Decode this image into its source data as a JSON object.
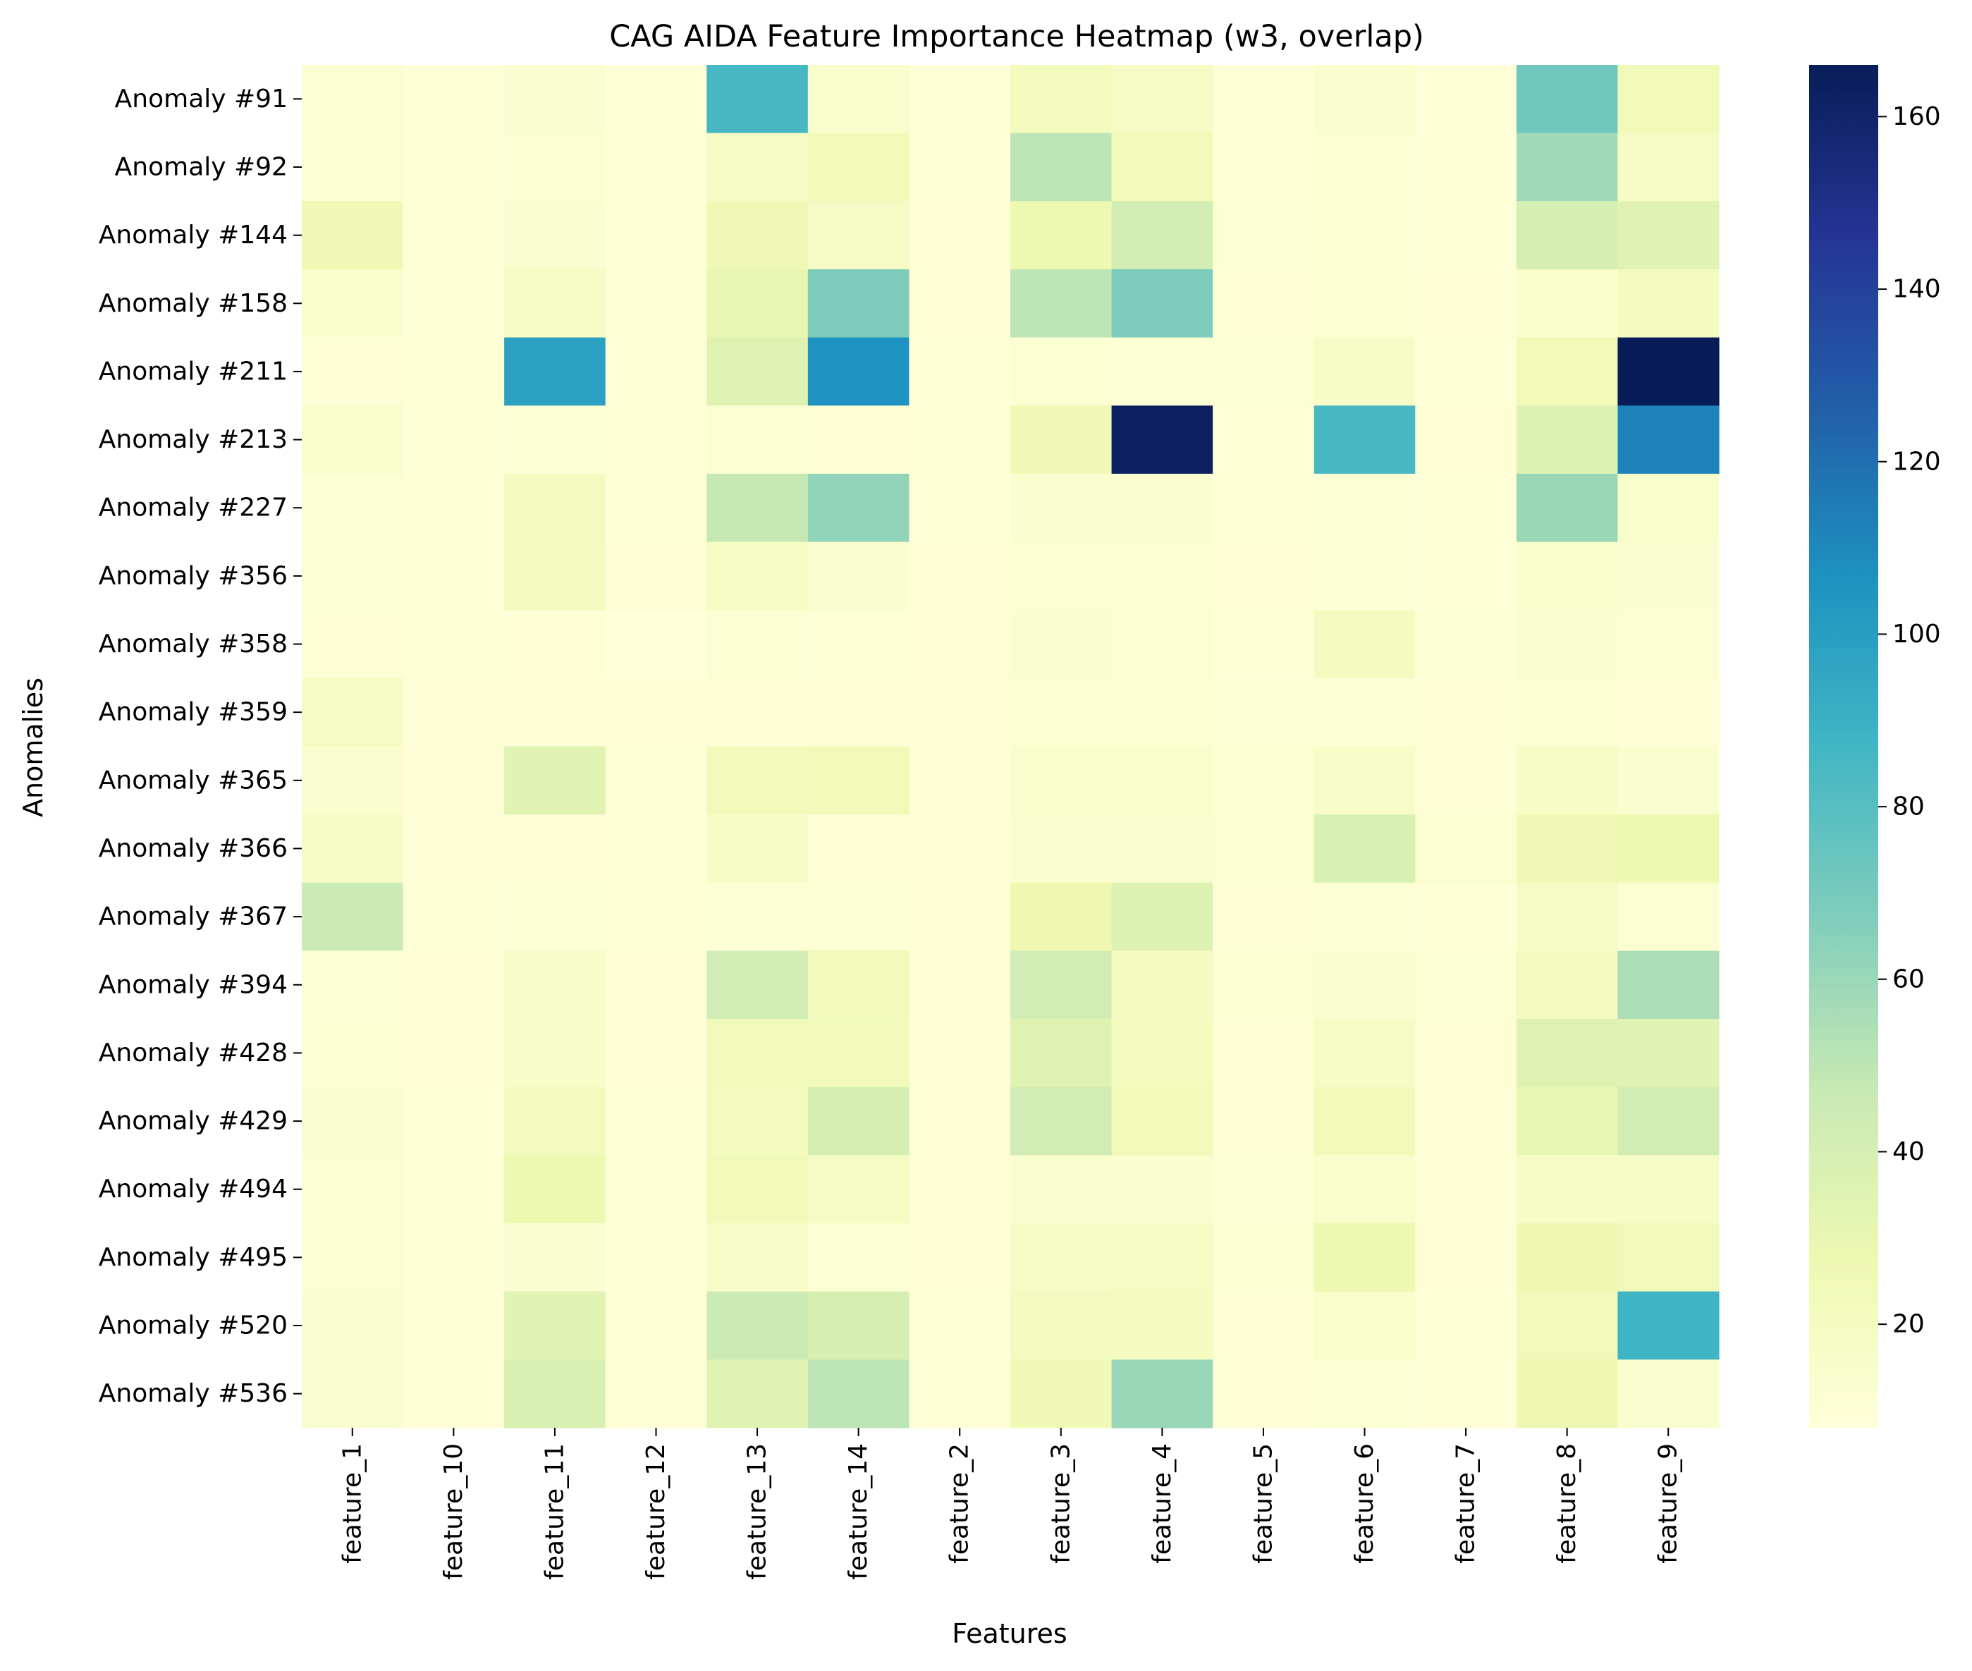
{
  "chart_data": {
    "type": "heatmap",
    "title": "CAG AIDA Feature Importance Heatmap (w3, overlap)",
    "xlabel": "Features",
    "ylabel": "Anomalies",
    "columns": [
      "feature_1",
      "feature_10",
      "feature_11",
      "feature_12",
      "feature_13",
      "feature_14",
      "feature_2",
      "feature_3",
      "feature_4",
      "feature_5",
      "feature_6",
      "feature_7",
      "feature_8",
      "feature_9"
    ],
    "rows": [
      "Anomaly #91",
      "Anomaly #92",
      "Anomaly #144",
      "Anomaly #158",
      "Anomaly #211",
      "Anomaly #213",
      "Anomaly #227",
      "Anomaly #356",
      "Anomaly #358",
      "Anomaly #359",
      "Anomaly #365",
      "Anomaly #366",
      "Anomaly #367",
      "Anomaly #394",
      "Anomaly #428",
      "Anomaly #429",
      "Anomaly #494",
      "Anomaly #495",
      "Anomaly #520",
      "Anomaly #536"
    ],
    "values": [
      [
        12,
        9,
        13,
        9,
        85,
        15,
        9,
        22,
        18,
        9,
        14,
        9,
        72,
        25
      ],
      [
        12,
        9,
        12,
        9,
        18,
        25,
        9,
        50,
        24,
        9,
        12,
        9,
        58,
        18
      ],
      [
        26,
        9,
        13,
        9,
        26,
        18,
        10,
        28,
        42,
        11,
        12,
        9,
        40,
        34
      ],
      [
        15,
        9,
        18,
        9,
        30,
        68,
        10,
        50,
        68,
        10,
        12,
        10,
        15,
        20
      ],
      [
        10,
        9,
        98,
        9,
        35,
        106,
        9,
        12,
        11,
        11,
        17,
        9,
        25,
        166
      ],
      [
        15,
        9,
        11,
        9,
        12,
        10,
        9,
        26,
        163,
        9,
        85,
        10,
        36,
        112
      ],
      [
        11,
        9,
        21,
        9,
        48,
        62,
        9,
        14,
        13,
        9,
        11,
        9,
        60,
        15
      ],
      [
        11,
        9,
        21,
        10,
        19,
        14,
        10,
        12,
        12,
        10,
        11,
        9,
        15,
        13
      ],
      [
        10,
        9,
        10,
        8,
        12,
        9,
        10,
        13,
        12,
        9,
        20,
        11,
        14,
        12
      ],
      [
        18,
        10,
        10,
        10,
        10,
        10,
        10,
        12,
        12,
        11,
        11,
        10,
        12,
        10
      ],
      [
        14,
        10,
        34,
        9,
        23,
        25,
        10,
        15,
        15,
        12,
        16,
        10,
        17,
        14
      ],
      [
        17,
        10,
        10,
        9,
        17,
        10,
        10,
        14,
        14,
        12,
        38,
        12,
        26,
        28
      ],
      [
        45,
        9,
        11,
        9,
        11,
        11,
        10,
        27,
        36,
        10,
        11,
        9,
        18,
        12
      ],
      [
        11,
        10,
        16,
        10,
        42,
        24,
        10,
        42,
        20,
        12,
        14,
        11,
        22,
        55
      ],
      [
        12,
        10,
        16,
        10,
        23,
        23,
        10,
        35,
        22,
        10,
        18,
        10,
        35,
        34
      ],
      [
        13,
        9,
        22,
        9,
        22,
        40,
        10,
        42,
        25,
        10,
        25,
        10,
        30,
        42
      ],
      [
        12,
        9,
        28,
        9,
        25,
        19,
        10,
        14,
        14,
        11,
        15,
        10,
        17,
        17
      ],
      [
        12,
        9,
        13,
        9,
        16,
        11,
        10,
        18,
        19,
        12,
        28,
        10,
        27,
        24
      ],
      [
        13,
        9,
        34,
        9,
        45,
        40,
        9,
        21,
        20,
        10,
        15,
        9,
        24,
        88
      ],
      [
        13,
        9,
        38,
        9,
        35,
        50,
        9,
        26,
        60,
        10,
        11,
        9,
        27,
        14
      ]
    ],
    "colormap": "YlGnBu",
    "colorbar": {
      "vmin": 8,
      "vmax": 166,
      "ticks": [
        20,
        40,
        60,
        80,
        100,
        120,
        140,
        160
      ]
    },
    "grid": false,
    "legend": "colorbar-right"
  }
}
